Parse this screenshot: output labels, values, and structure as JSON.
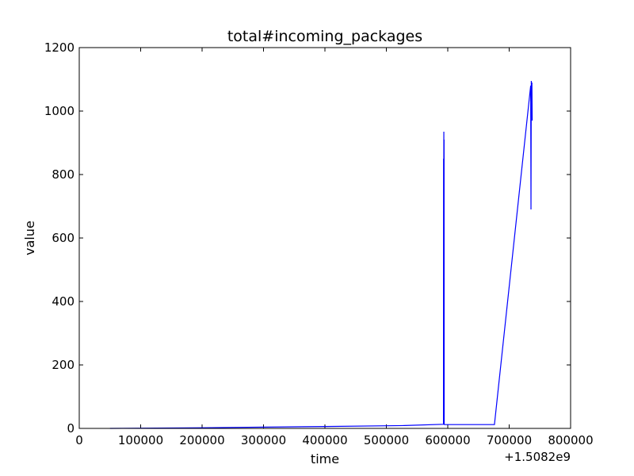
{
  "chart_data": {
    "type": "line",
    "title": "total#incoming_packages",
    "xlabel": "time",
    "ylabel": "value",
    "x_offset_label": "+1.5082e9",
    "xlim": [
      0,
      800000
    ],
    "ylim": [
      0,
      1200
    ],
    "x_ticks": [
      0,
      100000,
      200000,
      300000,
      400000,
      500000,
      600000,
      700000,
      800000
    ],
    "x_tick_labels": [
      "0",
      "100000",
      "200000",
      "300000",
      "400000",
      "500000",
      "600000",
      "700000",
      "800000"
    ],
    "y_ticks": [
      0,
      200,
      400,
      600,
      800,
      1000,
      1200
    ],
    "y_tick_labels": [
      "0",
      "200",
      "400",
      "600",
      "800",
      "1000",
      "1200"
    ],
    "grid": false,
    "colors": {
      "series": "#0000ff",
      "axes": "#000000"
    },
    "series": [
      {
        "x": [
          50000,
          200000,
          400000,
          530000,
          593000,
          593200,
          593400,
          593600,
          593800,
          594000,
          594200,
          594400,
          594600,
          676000,
          735000,
          735500,
          736000,
          736500,
          737000,
          737500
        ],
        "y": [
          0,
          2,
          6,
          9,
          13,
          850,
          470,
          935,
          480,
          910,
          13,
          13,
          12,
          12,
          1080,
          690,
          1095,
          980,
          1090,
          970
        ]
      }
    ]
  }
}
